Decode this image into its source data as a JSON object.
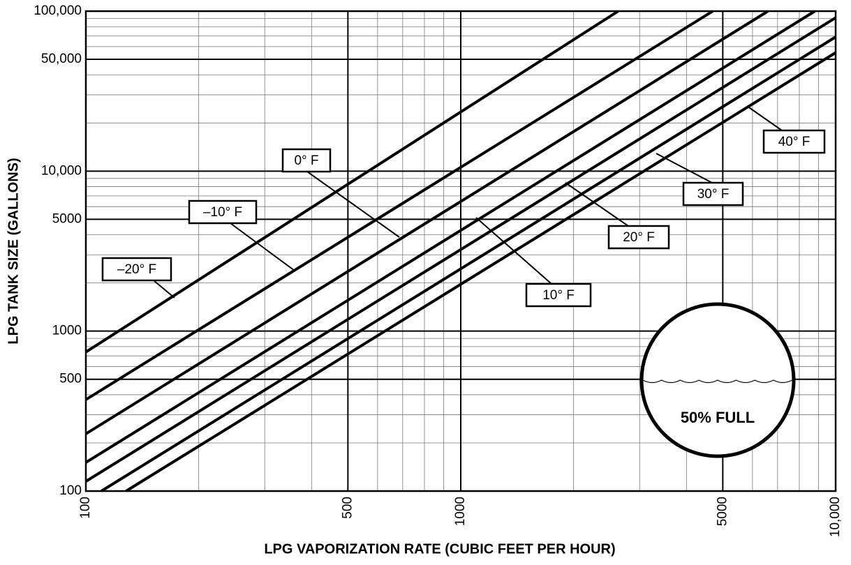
{
  "chart_data": {
    "type": "line",
    "x_label": "LPG VAPORIZATION RATE (CUBIC FEET PER HOUR)",
    "y_label": "LPG TANK SIZE (GALLONS)",
    "log_x": true,
    "log_y": true,
    "grid": true,
    "xlim": [
      100,
      10000
    ],
    "ylim": [
      100,
      100000
    ],
    "xticks": [
      100,
      500,
      1000,
      5000,
      {
        "value": 10000,
        "label": "10,000"
      }
    ],
    "yticks": [
      100,
      500,
      1000,
      5000,
      {
        "value": 10000,
        "label": "10,000"
      },
      {
        "value": 50000,
        "label": "50,000"
      },
      {
        "value": 100000,
        "label": "100,000"
      }
    ],
    "xticks_minor": [
      200,
      300,
      400,
      600,
      700,
      800,
      900,
      2000,
      3000,
      4000,
      6000,
      7000,
      8000,
      9000
    ],
    "yticks_minor": [
      200,
      300,
      400,
      600,
      700,
      800,
      900,
      2000,
      3000,
      4000,
      6000,
      7000,
      8000,
      9000,
      20000,
      30000,
      40000,
      60000,
      70000,
      80000,
      90000
    ],
    "series": [
      {
        "name": "–20° F",
        "color": "#000000",
        "x": [
          100,
          2630
        ],
        "values": [
          740,
          100000
        ]
      },
      {
        "name": "–10° F",
        "color": "#000000",
        "x": [
          100,
          4700
        ],
        "values": [
          373,
          100000
        ]
      },
      {
        "name": "0° F",
        "color": "#000000",
        "x": [
          100,
          6600
        ],
        "values": [
          228,
          100000
        ]
      },
      {
        "name": "10° F",
        "color": "#000000",
        "x": [
          100,
          8800
        ],
        "values": [
          151,
          100000
        ]
      },
      {
        "name": "20° F",
        "color": "#000000",
        "x": [
          100,
          10000
        ],
        "values": [
          115,
          91000
        ]
      },
      {
        "name": "30° F",
        "color": "#000000",
        "x": [
          110,
          10000
        ],
        "values": [
          100,
          69000
        ]
      },
      {
        "name": "40° F",
        "color": "#000000",
        "x": [
          128,
          10000
        ],
        "values": [
          100,
          55000
        ]
      }
    ],
    "annotation": "50% FULL"
  }
}
